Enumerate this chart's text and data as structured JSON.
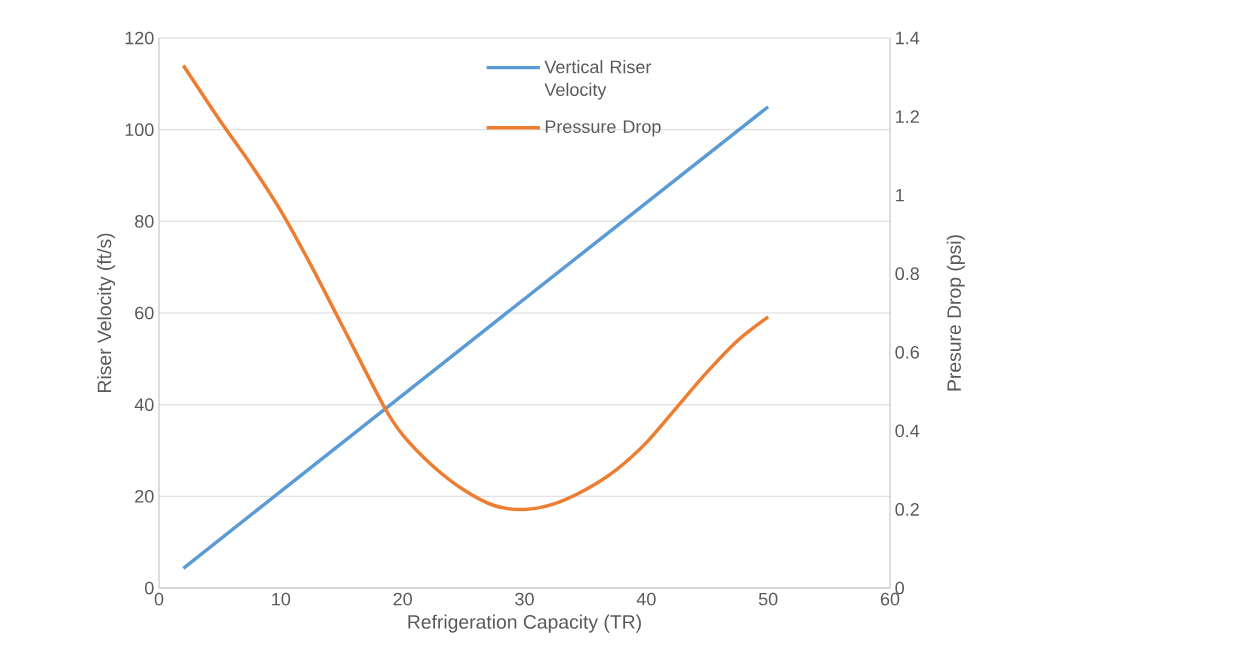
{
  "chart_data": {
    "type": "line",
    "xlabel": "Refrigeration Capacity (TR)",
    "ylabel": "Riser Velocity (ft/s)",
    "y2label": "Presure Drop (psi)",
    "series": [
      {
        "name": "Vertical Riser Velocity",
        "color": "#5b9bd5",
        "x": [
          2,
          26,
          50
        ],
        "values": [
          4.3,
          54.7,
          105
        ]
      },
      {
        "name": "Pressure Drop",
        "color": "#ed7d31",
        "axis": "y2",
        "x": [
          2,
          5,
          7.5,
          10,
          12.5,
          15,
          18.5,
          20,
          22.5,
          25,
          27.5,
          30,
          32.5,
          35,
          37.5,
          40,
          42.5,
          45,
          47.5,
          50
        ],
        "values": [
          1.33,
          1.19,
          1.08,
          0.96,
          0.82,
          0.67,
          0.46,
          0.39,
          0.31,
          0.25,
          0.21,
          0.2,
          0.215,
          0.25,
          0.3,
          0.37,
          0.46,
          0.55,
          0.63,
          0.69
        ]
      }
    ],
    "xlim": [
      0,
      60
    ],
    "xticks": [
      0,
      10,
      20,
      30,
      40,
      50,
      60
    ],
    "ylim": [
      0,
      120
    ],
    "yticks": [
      0,
      20,
      40,
      60,
      80,
      100,
      120
    ],
    "y2lim": [
      0,
      1.4
    ],
    "y2ticks": [
      0,
      0.2,
      0.4,
      0.6,
      0.8,
      1,
      1.2,
      1.4
    ],
    "grid": "y",
    "legend": "top",
    "marker": "none"
  }
}
